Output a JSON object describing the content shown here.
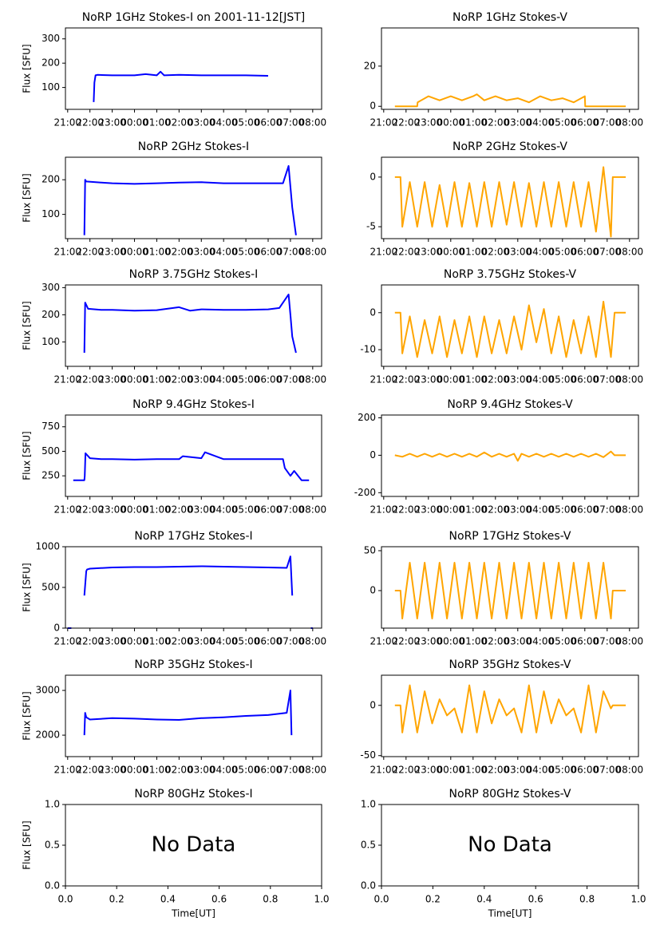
{
  "chart_data": [
    {
      "type": "line",
      "title": "NoRP 1GHz Stokes-I on 2001-11-12[JST]",
      "ylabel": "Flux [SFU]",
      "color": "#0000ff",
      "x": [
        "22:10",
        "22:12",
        "22:15",
        "22:20",
        "23:00",
        "00:00",
        "00:30",
        "01:00",
        "01:10",
        "01:20",
        "02:00",
        "03:00",
        "04:00",
        "05:00",
        "06:00"
      ],
      "values": [
        40,
        120,
        150,
        152,
        150,
        150,
        155,
        150,
        165,
        150,
        152,
        150,
        150,
        150,
        148
      ],
      "xlim": [
        "20:54",
        "08:24"
      ],
      "xticks": [
        "21:00",
        "22:00",
        "23:00",
        "00:00",
        "01:00",
        "02:00",
        "03:00",
        "04:00",
        "05:00",
        "06:00",
        "07:00",
        "08:00"
      ],
      "ylim": [
        10,
        345
      ],
      "yticks": [
        100,
        200,
        300
      ]
    },
    {
      "type": "line",
      "title": "NoRP 1GHz Stokes-V",
      "color": "#ffa500",
      "x": [
        "21:30",
        "22:30",
        "22:31",
        "23:00",
        "23:30",
        "00:00",
        "00:30",
        "01:00",
        "01:10",
        "01:30",
        "02:00",
        "02:30",
        "03:00",
        "03:30",
        "04:00",
        "04:30",
        "05:00",
        "05:30",
        "06:00",
        "06:01",
        "07:50"
      ],
      "values": [
        0,
        0,
        2,
        5,
        3,
        5,
        3,
        5,
        6,
        3,
        5,
        3,
        4,
        2,
        5,
        3,
        4,
        2,
        5,
        0,
        0
      ],
      "xlim": [
        "20:54",
        "08:24"
      ],
      "xticks": [
        "21:00",
        "22:00",
        "23:00",
        "00:00",
        "01:00",
        "02:00",
        "03:00",
        "04:00",
        "05:00",
        "06:00",
        "07:00",
        "08:00"
      ],
      "ylim": [
        -1.5,
        39
      ],
      "yticks": [
        0,
        20
      ]
    },
    {
      "type": "line",
      "title": "NoRP 2GHz Stokes-I",
      "ylabel": "Flux [SFU]",
      "color": "#0000ff",
      "x": [
        "21:45",
        "21:47",
        "21:50",
        "22:30",
        "23:00",
        "00:00",
        "01:00",
        "02:00",
        "03:00",
        "04:00",
        "05:00",
        "06:00",
        "06:40",
        "06:55",
        "07:00",
        "07:05",
        "07:15"
      ],
      "values": [
        40,
        200,
        195,
        192,
        190,
        188,
        190,
        192,
        193,
        190,
        190,
        190,
        190,
        240,
        180,
        120,
        40
      ],
      "xlim": [
        "20:54",
        "08:24"
      ],
      "xticks": [
        "21:00",
        "22:00",
        "23:00",
        "00:00",
        "01:00",
        "02:00",
        "03:00",
        "04:00",
        "05:00",
        "06:00",
        "07:00",
        "08:00"
      ],
      "ylim": [
        30,
        265
      ],
      "yticks": [
        100,
        200
      ]
    },
    {
      "type": "line",
      "title": "NoRP 2GHz Stokes-V",
      "color": "#ffa500",
      "x": [
        "21:30",
        "21:45",
        "21:50",
        "22:10",
        "22:30",
        "22:50",
        "23:10",
        "23:30",
        "23:50",
        "00:10",
        "00:30",
        "00:50",
        "01:10",
        "01:30",
        "01:50",
        "02:10",
        "02:30",
        "02:50",
        "03:10",
        "03:30",
        "03:50",
        "04:10",
        "04:30",
        "04:50",
        "05:10",
        "05:30",
        "05:50",
        "06:10",
        "06:30",
        "06:50",
        "07:10",
        "07:15",
        "07:50"
      ],
      "values": [
        0,
        0,
        -5,
        -0.5,
        -5,
        -0.5,
        -5,
        -0.8,
        -5,
        -0.5,
        -5,
        -0.6,
        -5,
        -0.5,
        -5,
        -0.5,
        -4.8,
        -0.5,
        -5,
        -0.6,
        -5,
        -0.5,
        -5,
        -0.5,
        -5,
        -0.5,
        -5,
        -0.5,
        -5.5,
        1,
        -6,
        0,
        0
      ],
      "xlim": [
        "20:54",
        "08:24"
      ],
      "xticks": [
        "21:00",
        "22:00",
        "23:00",
        "00:00",
        "01:00",
        "02:00",
        "03:00",
        "04:00",
        "05:00",
        "06:00",
        "07:00",
        "08:00"
      ],
      "ylim": [
        -6.2,
        2
      ],
      "yticks": [
        -5,
        0
      ]
    },
    {
      "type": "line",
      "title": "NoRP 3.75GHz Stokes-I",
      "ylabel": "Flux [SFU]",
      "color": "#0000ff",
      "x": [
        "21:45",
        "21:47",
        "21:55",
        "22:30",
        "23:00",
        "00:00",
        "01:00",
        "02:00",
        "02:30",
        "03:00",
        "04:00",
        "05:00",
        "06:00",
        "06:30",
        "06:55",
        "07:00",
        "07:05",
        "07:15"
      ],
      "values": [
        60,
        245,
        222,
        218,
        218,
        215,
        217,
        228,
        215,
        220,
        218,
        218,
        220,
        225,
        275,
        200,
        120,
        60
      ],
      "xlim": [
        "20:54",
        "08:24"
      ],
      "xticks": [
        "21:00",
        "22:00",
        "23:00",
        "00:00",
        "01:00",
        "02:00",
        "03:00",
        "04:00",
        "05:00",
        "06:00",
        "07:00",
        "08:00"
      ],
      "ylim": [
        10,
        310
      ],
      "yticks": [
        100,
        200,
        300
      ]
    },
    {
      "type": "line",
      "title": "NoRP 3.75GHz Stokes-V",
      "color": "#ffa500",
      "x": [
        "21:30",
        "21:45",
        "21:50",
        "22:10",
        "22:30",
        "22:50",
        "23:10",
        "23:30",
        "23:50",
        "00:10",
        "00:30",
        "00:50",
        "01:10",
        "01:30",
        "01:50",
        "02:10",
        "02:30",
        "02:50",
        "03:10",
        "03:30",
        "03:50",
        "04:10",
        "04:30",
        "04:50",
        "05:10",
        "05:30",
        "05:50",
        "06:10",
        "06:30",
        "06:50",
        "07:10",
        "07:20",
        "07:50"
      ],
      "values": [
        0,
        0,
        -11,
        -1,
        -12,
        -2,
        -11,
        -1,
        -12,
        -2,
        -11,
        -1,
        -12,
        -1,
        -11,
        -2,
        -11,
        -1,
        -10,
        2,
        -8,
        1,
        -11,
        -1,
        -12,
        -2,
        -11,
        -1,
        -12,
        3,
        -12,
        0,
        0
      ],
      "xlim": [
        "20:54",
        "08:24"
      ],
      "xticks": [
        "21:00",
        "22:00",
        "23:00",
        "00:00",
        "01:00",
        "02:00",
        "03:00",
        "04:00",
        "05:00",
        "06:00",
        "07:00",
        "08:00"
      ],
      "ylim": [
        -14.5,
        7.5
      ],
      "yticks": [
        -10,
        0
      ]
    },
    {
      "type": "line",
      "title": "NoRP 9.4GHz Stokes-I",
      "ylabel": "Flux [SFU]",
      "color": "#0000ff",
      "x": [
        "21:15",
        "21:45",
        "21:46",
        "21:48",
        "22:00",
        "22:30",
        "23:00",
        "00:00",
        "01:00",
        "02:00",
        "02:10",
        "03:00",
        "03:10",
        "04:00",
        "05:00",
        "06:00",
        "06:40",
        "06:45",
        "07:00",
        "07:10",
        "07:30",
        "07:50"
      ],
      "values": [
        205,
        205,
        250,
        480,
        430,
        420,
        420,
        415,
        420,
        420,
        450,
        430,
        490,
        420,
        420,
        420,
        420,
        330,
        250,
        300,
        205,
        205
      ],
      "xlim": [
        "20:54",
        "08:24"
      ],
      "xticks": [
        "21:00",
        "22:00",
        "23:00",
        "00:00",
        "01:00",
        "02:00",
        "03:00",
        "04:00",
        "05:00",
        "06:00",
        "07:00",
        "08:00"
      ],
      "ylim": [
        40,
        870
      ],
      "yticks": [
        250,
        500,
        750
      ]
    },
    {
      "type": "line",
      "title": "NoRP 9.4GHz Stokes-V",
      "color": "#ffa500",
      "x": [
        "21:30",
        "21:50",
        "22:10",
        "22:30",
        "22:50",
        "23:10",
        "23:30",
        "23:50",
        "00:10",
        "00:30",
        "00:50",
        "01:10",
        "01:30",
        "01:50",
        "02:10",
        "02:30",
        "02:50",
        "03:00",
        "03:10",
        "03:30",
        "03:50",
        "04:10",
        "04:30",
        "04:50",
        "05:10",
        "05:30",
        "05:50",
        "06:10",
        "06:30",
        "06:50",
        "07:10",
        "07:20",
        "07:50"
      ],
      "values": [
        0,
        -8,
        8,
        -8,
        8,
        -8,
        8,
        -8,
        8,
        -8,
        8,
        -8,
        15,
        -8,
        8,
        -8,
        8,
        -30,
        8,
        -8,
        8,
        -8,
        8,
        -8,
        8,
        -8,
        8,
        -8,
        8,
        -10,
        20,
        0,
        0
      ],
      "xlim": [
        "20:54",
        "08:24"
      ],
      "xticks": [
        "21:00",
        "22:00",
        "23:00",
        "00:00",
        "01:00",
        "02:00",
        "03:00",
        "04:00",
        "05:00",
        "06:00",
        "07:00",
        "08:00"
      ],
      "ylim": [
        -220,
        215
      ],
      "yticks": [
        -200,
        0,
        200
      ]
    },
    {
      "type": "line",
      "title": "NoRP 17GHz Stokes-I",
      "ylabel": "Flux [SFU]",
      "color": "#0000ff",
      "x": [
        "21:00",
        "21:10",
        "21:20",
        "21:45",
        "21:50",
        "21:52",
        "22:00",
        "23:00",
        "00:00",
        "01:00",
        "02:00",
        "03:00",
        "04:00",
        "05:00",
        "06:00",
        "06:50",
        "07:00",
        "07:05",
        "07:20",
        "07:55",
        "08:00"
      ],
      "values": [
        0,
        0,
        null,
        400,
        700,
        720,
        730,
        745,
        750,
        750,
        755,
        760,
        755,
        750,
        745,
        740,
        880,
        400,
        null,
        0,
        0
      ],
      "xlim": [
        "20:54",
        "08:24"
      ],
      "xticks": [
        "21:00",
        "22:00",
        "23:00",
        "00:00",
        "01:00",
        "02:00",
        "03:00",
        "04:00",
        "05:00",
        "06:00",
        "07:00",
        "08:00"
      ],
      "ylim": [
        0,
        1000
      ],
      "yticks": [
        0,
        500,
        1000
      ]
    },
    {
      "type": "line",
      "title": "NoRP 17GHz Stokes-V",
      "color": "#ffa500",
      "x": [
        "21:30",
        "21:45",
        "21:50",
        "22:10",
        "22:30",
        "22:50",
        "23:10",
        "23:30",
        "23:50",
        "00:10",
        "00:30",
        "00:50",
        "01:10",
        "01:30",
        "01:50",
        "02:10",
        "02:30",
        "02:50",
        "03:10",
        "03:30",
        "03:50",
        "04:10",
        "04:30",
        "04:50",
        "05:10",
        "05:30",
        "05:50",
        "06:10",
        "06:30",
        "06:50",
        "07:10",
        "07:15",
        "07:50"
      ],
      "values": [
        0,
        0,
        -35,
        35,
        -35,
        35,
        -35,
        35,
        -35,
        35,
        -35,
        35,
        -35,
        35,
        -35,
        35,
        -35,
        35,
        -35,
        35,
        -35,
        35,
        -35,
        35,
        -35,
        35,
        -35,
        35,
        -35,
        35,
        -35,
        0,
        0
      ],
      "xlim": [
        "20:54",
        "08:24"
      ],
      "xticks": [
        "21:00",
        "22:00",
        "23:00",
        "00:00",
        "01:00",
        "02:00",
        "03:00",
        "04:00",
        "05:00",
        "06:00",
        "07:00",
        "08:00"
      ],
      "ylim": [
        -47,
        55
      ],
      "yticks": [
        0,
        50
      ]
    },
    {
      "type": "line",
      "title": "NoRP 35GHz Stokes-I",
      "ylabel": "Flux [SFU]",
      "color": "#0000ff",
      "x": [
        "21:45",
        "21:47",
        "21:50",
        "22:00",
        "23:00",
        "00:00",
        "01:00",
        "02:00",
        "03:00",
        "04:00",
        "05:00",
        "06:00",
        "06:50",
        "07:00",
        "07:03"
      ],
      "values": [
        2000,
        2500,
        2400,
        2350,
        2380,
        2370,
        2350,
        2340,
        2380,
        2400,
        2430,
        2450,
        2500,
        3000,
        2000
      ],
      "xlim": [
        "20:54",
        "08:24"
      ],
      "xticks": [
        "21:00",
        "22:00",
        "23:00",
        "00:00",
        "01:00",
        "02:00",
        "03:00",
        "04:00",
        "05:00",
        "06:00",
        "07:00",
        "08:00"
      ],
      "ylim": [
        1520,
        3340
      ],
      "yticks": [
        2000,
        3000
      ]
    },
    {
      "type": "line",
      "title": "NoRP 35GHz Stokes-V",
      "color": "#ffa500",
      "x": [
        "21:30",
        "21:45",
        "21:50",
        "22:10",
        "22:30",
        "22:50",
        "23:10",
        "23:30",
        "23:50",
        "00:10",
        "00:30",
        "00:50",
        "01:10",
        "01:30",
        "01:50",
        "02:10",
        "02:30",
        "02:50",
        "03:10",
        "03:30",
        "03:50",
        "04:10",
        "04:30",
        "04:50",
        "05:10",
        "05:30",
        "05:50",
        "06:10",
        "06:30",
        "06:50",
        "07:10",
        "07:15",
        "07:50"
      ],
      "values": [
        0,
        0,
        -27,
        20,
        -27,
        14,
        -18,
        6,
        -10,
        -3,
        -27,
        20,
        -27,
        14,
        -18,
        6,
        -10,
        -3,
        -27,
        20,
        -27,
        14,
        -18,
        6,
        -10,
        -3,
        -27,
        20,
        -27,
        14,
        -3,
        0,
        0
      ],
      "xlim": [
        "20:54",
        "08:24"
      ],
      "xticks": [
        "21:00",
        "22:00",
        "23:00",
        "00:00",
        "01:00",
        "02:00",
        "03:00",
        "04:00",
        "05:00",
        "06:00",
        "07:00",
        "08:00"
      ],
      "ylim": [
        -51,
        30
      ],
      "yticks": [
        -50,
        0
      ]
    },
    {
      "type": "empty",
      "title": "NoRP 80GHz Stokes-I",
      "ylabel": "Flux [SFU]",
      "xlabel": "Time[UT]",
      "annotation": "No Data",
      "xlim": [
        0,
        1
      ],
      "xticks": [
        {
          "value": 0,
          "label": "0.0"
        },
        {
          "value": 0.2,
          "label": "0.2"
        },
        {
          "value": 0.4,
          "label": "0.4"
        },
        {
          "value": 0.6,
          "label": "0.6"
        },
        {
          "value": 0.8,
          "label": "0.8"
        },
        {
          "value": 1,
          "label": "1.0"
        }
      ],
      "ylim": [
        0,
        1
      ],
      "yticks": [
        {
          "value": 0,
          "label": "0.0"
        },
        {
          "value": 0.5,
          "label": "0.5"
        },
        {
          "value": 1,
          "label": "1.0"
        }
      ]
    },
    {
      "type": "empty",
      "title": "NoRP 80GHz Stokes-V",
      "xlabel": "Time[UT]",
      "annotation": "No Data",
      "xlim": [
        0,
        1
      ],
      "xticks": [
        {
          "value": 0,
          "label": "0.0"
        },
        {
          "value": 0.2,
          "label": "0.2"
        },
        {
          "value": 0.4,
          "label": "0.4"
        },
        {
          "value": 0.6,
          "label": "0.6"
        },
        {
          "value": 0.8,
          "label": "0.8"
        },
        {
          "value": 1,
          "label": "1.0"
        }
      ],
      "ylim": [
        0,
        1
      ],
      "yticks": [
        {
          "value": 0,
          "label": "0.0"
        },
        {
          "value": 0.5,
          "label": "0.5"
        },
        {
          "value": 1,
          "label": "1.0"
        }
      ]
    }
  ]
}
